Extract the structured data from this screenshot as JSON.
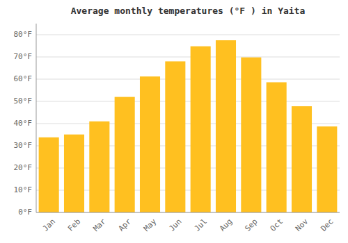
{
  "chart_data": {
    "type": "bar",
    "title": "Average monthly temperatures (°F ) in Yaita",
    "categories": [
      "Jan",
      "Feb",
      "Mar",
      "Apr",
      "May",
      "Jun",
      "Jul",
      "Aug",
      "Sep",
      "Oct",
      "Nov",
      "Dec"
    ],
    "values": [
      33.8,
      35.1,
      41.0,
      52.0,
      61.2,
      68.0,
      74.8,
      77.5,
      69.8,
      58.6,
      47.8,
      38.7
    ],
    "color": "#FFC020",
    "ylim": [
      0,
      85
    ],
    "yticks": [
      {
        "value": 0,
        "label": "0°F"
      },
      {
        "value": 10,
        "label": "10°F"
      },
      {
        "value": 20,
        "label": "20°F"
      },
      {
        "value": 30,
        "label": "30°F"
      },
      {
        "value": 40,
        "label": "40°F"
      },
      {
        "value": 50,
        "label": "50°F"
      },
      {
        "value": 60,
        "label": "60°F"
      },
      {
        "value": 70,
        "label": "70°F"
      },
      {
        "value": 80,
        "label": "80°F"
      }
    ],
    "grid": true
  }
}
